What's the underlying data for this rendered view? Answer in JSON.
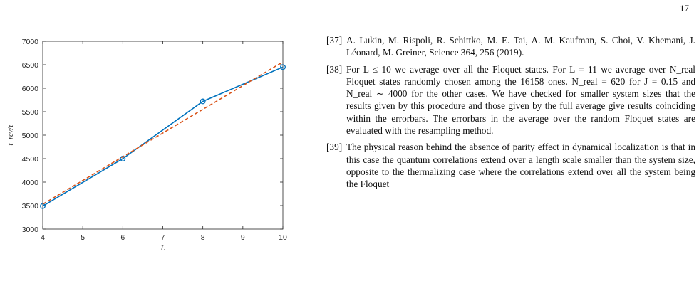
{
  "page": {
    "number": "17"
  },
  "figure": {
    "chart_data": {
      "type": "line",
      "xlabel": "L",
      "ylabel": "t_rev/τ",
      "xlim": [
        4,
        10
      ],
      "ylim": [
        3000,
        7000
      ],
      "xticks": [
        "4",
        "5",
        "6",
        "7",
        "8",
        "9",
        "10"
      ],
      "yticks": [
        "3000",
        "3500",
        "4000",
        "4500",
        "5000",
        "5500",
        "6000",
        "6500",
        "7000"
      ],
      "grid": false,
      "series": [
        {
          "x": [
            4,
            6,
            8,
            10
          ],
          "y": [
            3490,
            4500,
            5720,
            6450
          ],
          "color": "#0072bd",
          "style": "solid",
          "markers": "circle"
        },
        {
          "x": [
            4,
            10
          ],
          "y": [
            3530,
            6560
          ],
          "color": "#d95319",
          "style": "dashed",
          "markers": "none"
        }
      ]
    }
  },
  "references": [
    {
      "num": "[37]",
      "text": "A. Lukin, M. Rispoli, R. Schittko, M. E. Tai, A. M. Kaufman, S. Choi, V. Khemani, J. Léonard, M. Greiner, Science 364, 256 (2019)."
    },
    {
      "num": "[38]",
      "text": "For L ≤ 10 we average over all the Floquet states. For L = 11 we average over N_real Floquet states randomly chosen among the 16158 ones. N_real = 620 for J = 0.15 and N_real ∼ 4000 for the other cases. We have checked for smaller system sizes that the results given by this procedure and those given by the full average give results coinciding within the errorbars. The errorbars in the average over the random Floquet states are evaluated with the resampling method."
    },
    {
      "num": "[39]",
      "text": "The physical reason behind the absence of parity effect in dynamical localization is that in this case the quantum correlations extend over a length scale smaller than the system size, opposite to the thermalizing case where the correlations extend over all the system being the Floquet"
    }
  ]
}
